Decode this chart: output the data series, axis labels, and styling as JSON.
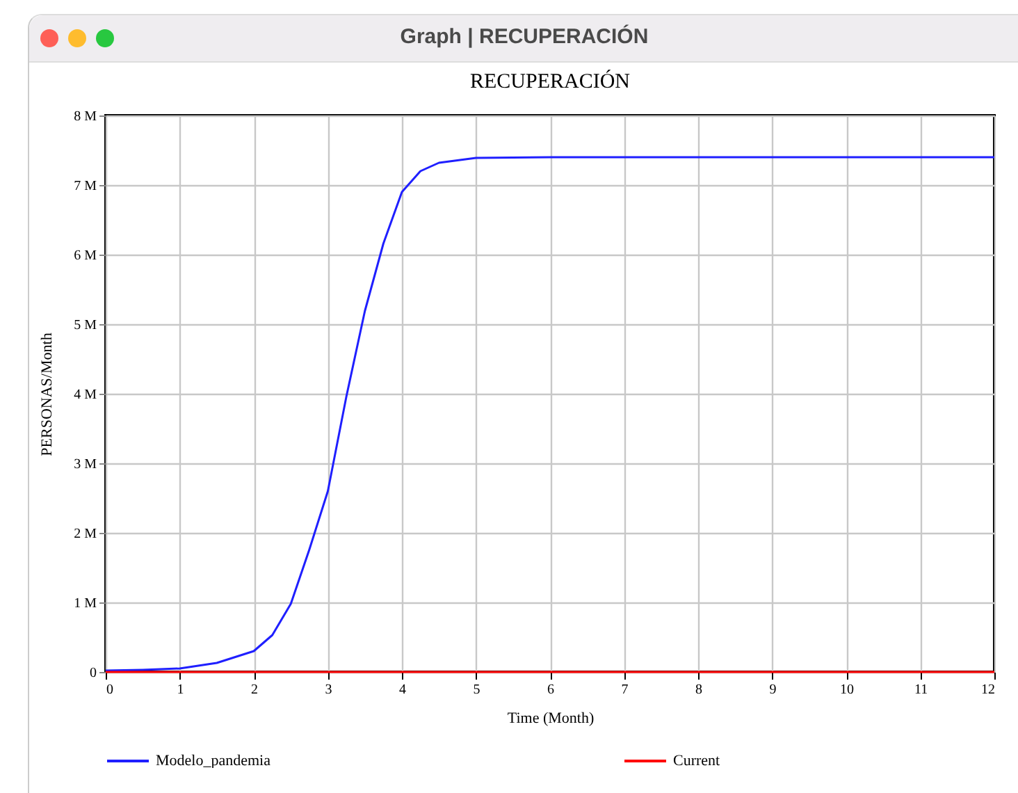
{
  "chart_data": {
    "type": "line",
    "title": "RECUPERACIÓN",
    "xlabel": "Time (Month)",
    "ylabel": "PERSONAS/Month",
    "annotations": [
      "Graph | RECUPERACIÓN"
    ],
    "x": [
      0,
      0.5,
      1,
      1.5,
      2,
      2.25,
      2.5,
      2.75,
      3,
      3.25,
      3.5,
      3.75,
      4,
      4.25,
      4.5,
      5,
      6,
      7,
      8,
      9,
      10,
      11,
      12
    ],
    "series": [
      {
        "name": "Modelo_pandemia",
        "color": "#1f1fff",
        "values": [
          20000,
          30000,
          50000,
          130000,
          300000,
          530000,
          980000,
          1760000,
          2600000,
          3960000,
          5190000,
          6160000,
          6900000,
          7200000,
          7320000,
          7390000,
          7400000,
          7400000,
          7400000,
          7400000,
          7400000,
          7400000,
          7400000
        ]
      },
      {
        "name": "Current",
        "color": "#ff0000",
        "values": [
          0,
          0,
          0,
          0,
          0,
          0,
          0,
          0,
          0,
          0,
          0,
          0,
          0,
          0,
          0,
          0,
          0,
          0,
          0,
          0,
          0,
          0,
          0
        ]
      }
    ],
    "xlim": [
      0,
      12
    ],
    "xticks": [
      0,
      1,
      2,
      3,
      4,
      5,
      6,
      7,
      8,
      9,
      10,
      11,
      12
    ],
    "ylim": [
      0,
      8000000
    ],
    "yticks": [
      0,
      {
        "value": 1000000,
        "label": "1 M"
      },
      {
        "value": 2000000,
        "label": "2 M"
      },
      {
        "value": 3000000,
        "label": "3 M"
      },
      {
        "value": 4000000,
        "label": "4 M"
      },
      {
        "value": 5000000,
        "label": "5 M"
      },
      {
        "value": 6000000,
        "label": "6 M"
      },
      {
        "value": 7000000,
        "label": "7 M"
      },
      {
        "value": 8000000,
        "label": "8 M"
      }
    ],
    "grid": true,
    "legend": "bottom",
    "marker": "none",
    "line_style": "solid"
  }
}
